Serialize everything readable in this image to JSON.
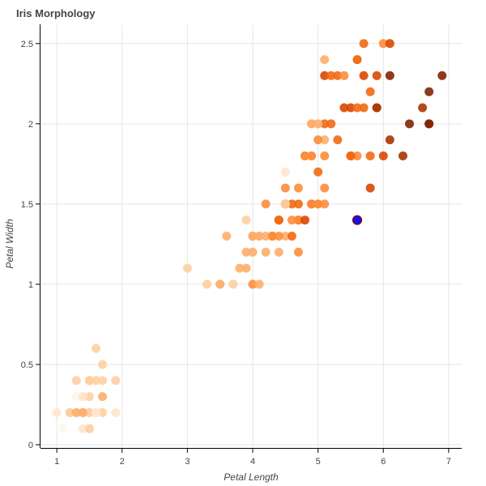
{
  "chart_data": {
    "type": "scatter",
    "title": "Iris Morphology",
    "xlabel": "Petal Length",
    "ylabel": "Petal Width",
    "xlim": [
      0.75,
      7.2
    ],
    "ylim": [
      -0.02,
      2.62
    ],
    "xticks": [
      1,
      2,
      3,
      4,
      5,
      6,
      7
    ],
    "yticks": [
      0,
      0.5,
      1,
      1.5,
      2,
      2.5
    ],
    "xtick_labels": [
      "1",
      "2",
      "3",
      "4",
      "5",
      "6",
      "7"
    ],
    "ytick_labels": [
      "0",
      "0.5",
      "1",
      "1.5",
      "2",
      "2.5"
    ],
    "grid": true,
    "colormap": [
      "#fff5eb",
      "#fee6ce",
      "#fdd0a2",
      "#fdae6b",
      "#fd8d3c",
      "#f16913",
      "#d94801",
      "#a63603",
      "#7f2704"
    ],
    "color_by": "sepal length (approx.)",
    "points": [
      [
        1.4,
        0.2,
        5.1
      ],
      [
        1.4,
        0.2,
        4.9
      ],
      [
        1.3,
        0.2,
        4.7
      ],
      [
        1.5,
        0.2,
        4.6
      ],
      [
        1.4,
        0.2,
        5.0
      ],
      [
        1.7,
        0.4,
        5.4
      ],
      [
        1.4,
        0.3,
        4.6
      ],
      [
        1.5,
        0.2,
        5.0
      ],
      [
        1.4,
        0.2,
        4.4
      ],
      [
        1.5,
        0.1,
        4.9
      ],
      [
        1.5,
        0.2,
        5.4
      ],
      [
        1.6,
        0.2,
        4.8
      ],
      [
        1.4,
        0.1,
        4.8
      ],
      [
        1.1,
        0.1,
        4.3
      ],
      [
        1.2,
        0.2,
        5.8
      ],
      [
        1.5,
        0.4,
        5.7
      ],
      [
        1.3,
        0.4,
        5.4
      ],
      [
        1.4,
        0.3,
        5.1
      ],
      [
        1.7,
        0.3,
        5.7
      ],
      [
        1.5,
        0.3,
        5.1
      ],
      [
        1.7,
        0.2,
        5.4
      ],
      [
        1.5,
        0.4,
        5.1
      ],
      [
        1.0,
        0.2,
        4.6
      ],
      [
        1.7,
        0.5,
        5.1
      ],
      [
        1.9,
        0.2,
        4.8
      ],
      [
        1.6,
        0.2,
        5.0
      ],
      [
        1.6,
        0.4,
        5.0
      ],
      [
        1.5,
        0.2,
        5.2
      ],
      [
        1.4,
        0.2,
        5.2
      ],
      [
        1.6,
        0.2,
        4.7
      ],
      [
        1.6,
        0.2,
        4.8
      ],
      [
        1.5,
        0.4,
        5.4
      ],
      [
        1.5,
        0.1,
        5.2
      ],
      [
        1.4,
        0.2,
        5.5
      ],
      [
        1.2,
        0.2,
        5.0
      ],
      [
        1.3,
        0.2,
        5.5
      ],
      [
        1.3,
        0.3,
        4.5
      ],
      [
        1.6,
        0.6,
        5.0
      ],
      [
        1.9,
        0.4,
        5.1
      ],
      [
        1.4,
        0.3,
        4.8
      ],
      [
        4.7,
        1.4,
        7.0
      ],
      [
        4.5,
        1.5,
        6.4
      ],
      [
        4.9,
        1.5,
        6.9
      ],
      [
        4.0,
        1.3,
        5.5
      ],
      [
        4.6,
        1.5,
        6.5
      ],
      [
        4.5,
        1.3,
        5.7
      ],
      [
        4.7,
        1.6,
        6.3
      ],
      [
        3.3,
        1.0,
        4.9
      ],
      [
        4.6,
        1.3,
        6.6
      ],
      [
        3.9,
        1.4,
        5.2
      ],
      [
        3.5,
        1.0,
        5.0
      ],
      [
        4.2,
        1.5,
        5.9
      ],
      [
        4.0,
        1.0,
        6.0
      ],
      [
        4.7,
        1.4,
        6.1
      ],
      [
        3.6,
        1.3,
        5.6
      ],
      [
        4.4,
        1.4,
        6.7
      ],
      [
        4.1,
        1.0,
        5.8
      ],
      [
        4.5,
        1.5,
        6.2
      ],
      [
        3.9,
        1.1,
        5.6
      ],
      [
        4.8,
        1.8,
        5.9
      ],
      [
        4.0,
        1.3,
        6.1
      ],
      [
        4.9,
        1.5,
        6.3
      ],
      [
        4.7,
        1.2,
        6.1
      ],
      [
        4.3,
        1.3,
        6.4
      ],
      [
        4.4,
        1.4,
        6.6
      ],
      [
        4.8,
        1.4,
        6.8
      ],
      [
        5.0,
        1.7,
        6.7
      ],
      [
        4.5,
        1.5,
        6.0
      ],
      [
        3.5,
        1.0,
        5.7
      ],
      [
        3.8,
        1.1,
        5.5
      ],
      [
        3.7,
        1.0,
        5.4
      ],
      [
        3.9,
        1.2,
        5.8
      ],
      [
        5.1,
        1.6,
        6.0
      ],
      [
        4.5,
        1.5,
        5.4
      ],
      [
        4.5,
        1.6,
        6.0
      ],
      [
        4.7,
        1.5,
        6.7
      ],
      [
        4.4,
        1.3,
        6.3
      ],
      [
        4.1,
        1.3,
        5.6
      ],
      [
        4.0,
        1.3,
        5.5
      ],
      [
        4.4,
        1.2,
        5.5
      ],
      [
        4.6,
        1.4,
        6.1
      ],
      [
        4.0,
        1.2,
        5.8
      ],
      [
        3.3,
        1.0,
        5.0
      ],
      [
        4.2,
        1.3,
        5.6
      ],
      [
        4.2,
        1.2,
        5.7
      ],
      [
        4.3,
        1.3,
        6.2
      ],
      [
        3.0,
        1.1,
        5.1
      ],
      [
        4.1,
        1.3,
        5.7
      ],
      [
        4.9,
        2.0,
        5.6
      ],
      [
        5.0,
        1.5,
        6.0
      ],
      [
        6.0,
        2.5,
        6.3
      ],
      [
        5.1,
        1.9,
        5.8
      ],
      [
        5.9,
        2.1,
        7.1
      ],
      [
        5.6,
        1.8,
        6.3
      ],
      [
        5.8,
        2.2,
        6.5
      ],
      [
        6.6,
        2.1,
        7.6
      ],
      [
        4.5,
        1.7,
        4.9
      ],
      [
        6.3,
        1.8,
        7.3
      ],
      [
        5.8,
        1.8,
        6.7
      ],
      [
        6.1,
        2.5,
        7.2
      ],
      [
        5.1,
        2.0,
        6.5
      ],
      [
        5.3,
        1.9,
        6.4
      ],
      [
        5.5,
        2.1,
        6.8
      ],
      [
        5.0,
        2.0,
        5.7
      ],
      [
        5.1,
        2.4,
        5.8
      ],
      [
        5.3,
        2.3,
        6.4
      ],
      [
        5.5,
        1.8,
        6.5
      ],
      [
        6.7,
        2.2,
        7.7
      ],
      [
        6.9,
        2.3,
        7.7
      ],
      [
        5.0,
        1.5,
        6.0
      ],
      [
        5.7,
        2.3,
        6.9
      ],
      [
        4.9,
        2.0,
        5.6
      ],
      [
        6.7,
        2.0,
        7.7
      ],
      [
        4.9,
        1.8,
        6.3
      ],
      [
        5.7,
        2.1,
        6.7
      ],
      [
        6.0,
        1.8,
        7.2
      ],
      [
        4.8,
        1.8,
        6.2
      ],
      [
        4.9,
        1.8,
        6.1
      ],
      [
        5.6,
        2.1,
        6.4
      ],
      [
        5.8,
        1.6,
        7.2
      ],
      [
        6.1,
        1.9,
        7.4
      ],
      [
        6.4,
        2.0,
        7.9
      ],
      [
        5.1,
        1.5,
        6.3
      ],
      [
        6.1,
        2.3,
        7.7
      ],
      [
        5.6,
        2.4,
        6.3
      ],
      [
        5.5,
        1.8,
        6.4
      ],
      [
        5.4,
        2.1,
        6.9
      ],
      [
        5.6,
        2.4,
        6.7
      ],
      [
        5.1,
        2.3,
        6.9
      ],
      [
        5.9,
        2.3,
        6.8
      ],
      [
        5.7,
        2.5,
        6.7
      ],
      [
        5.2,
        2.3,
        6.7
      ],
      [
        5.0,
        1.9,
        6.3
      ],
      [
        5.2,
        2.0,
        6.5
      ],
      [
        5.4,
        2.3,
        6.2
      ],
      [
        5.1,
        1.8,
        5.9
      ],
      [
        6.7,
        2.0,
        7.9
      ],
      [
        5.9,
        2.1,
        7.3
      ]
    ],
    "highlighted_point": {
      "x": 5.6,
      "y": 1.4,
      "color": "#1010ee",
      "outline": "#a00000"
    }
  }
}
